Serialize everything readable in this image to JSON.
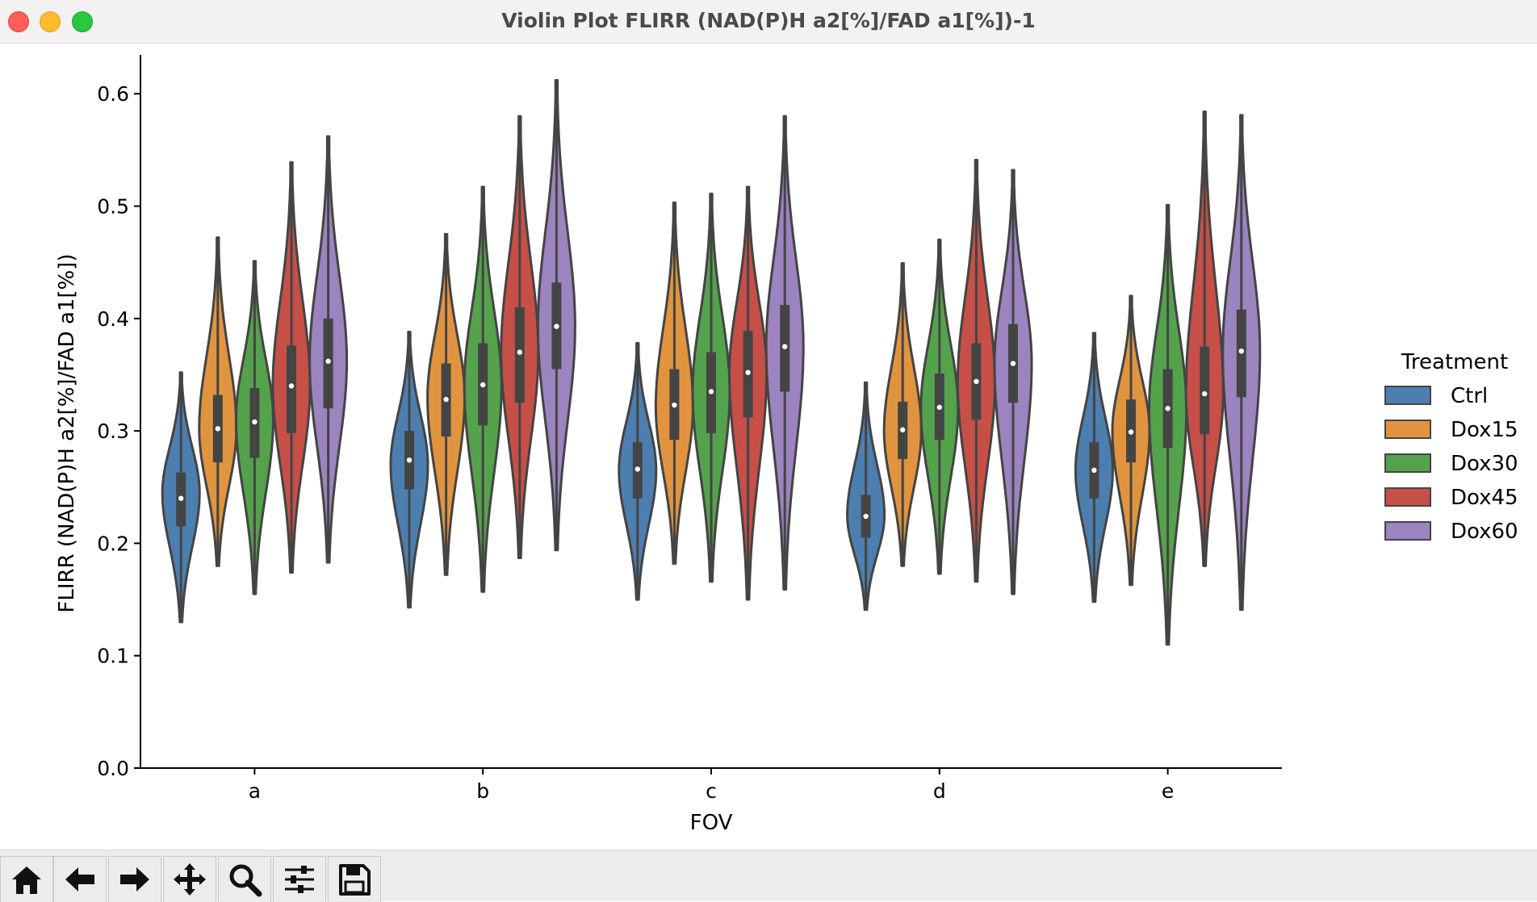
{
  "window": {
    "title": "Violin Plot FLIRR (NAD(P)H a2[%]/FAD a1[%])-1"
  },
  "toolbar": {
    "tools": [
      {
        "name": "home-icon"
      },
      {
        "name": "back-arrow-icon"
      },
      {
        "name": "forward-arrow-icon"
      },
      {
        "name": "pan-move-icon"
      },
      {
        "name": "zoom-magnifier-icon"
      },
      {
        "name": "configure-subplots-icon"
      },
      {
        "name": "save-floppy-icon"
      }
    ]
  },
  "chart_data": {
    "type": "violin",
    "xlabel": "FOV",
    "ylabel": "FLIRR (NAD(P)H a2[%]/FAD a1[%])",
    "categories": [
      "a",
      "b",
      "c",
      "d",
      "e"
    ],
    "ylim": [
      0.0,
      0.625
    ],
    "yticks": [
      0.0,
      0.1,
      0.2,
      0.3,
      0.4,
      0.5,
      0.6
    ],
    "ytick_labels": [
      "0.0",
      "0.1",
      "0.2",
      "0.3",
      "0.4",
      "0.5",
      "0.6"
    ],
    "grid": false,
    "legend": {
      "title": "Treatment",
      "placement": "right"
    },
    "series": [
      {
        "name": "Ctrl",
        "color": "#4c7fb0",
        "values": [
          {
            "min": 0.13,
            "q1": 0.215,
            "median": 0.24,
            "q3": 0.263,
            "max": 0.352,
            "peak": 0.245
          },
          {
            "min": 0.143,
            "q1": 0.248,
            "median": 0.274,
            "q3": 0.3,
            "max": 0.388,
            "peak": 0.27
          },
          {
            "min": 0.15,
            "q1": 0.24,
            "median": 0.266,
            "q3": 0.29,
            "max": 0.378,
            "peak": 0.265
          },
          {
            "min": 0.141,
            "q1": 0.205,
            "median": 0.224,
            "q3": 0.243,
            "max": 0.343,
            "peak": 0.225
          },
          {
            "min": 0.148,
            "q1": 0.24,
            "median": 0.265,
            "q3": 0.29,
            "max": 0.387,
            "peak": 0.265
          }
        ]
      },
      {
        "name": "Dox15",
        "color": "#e1943f",
        "values": [
          {
            "min": 0.18,
            "q1": 0.272,
            "median": 0.302,
            "q3": 0.332,
            "max": 0.472,
            "peak": 0.302
          },
          {
            "min": 0.172,
            "q1": 0.295,
            "median": 0.328,
            "q3": 0.36,
            "max": 0.475,
            "peak": 0.33
          },
          {
            "min": 0.182,
            "q1": 0.292,
            "median": 0.323,
            "q3": 0.355,
            "max": 0.503,
            "peak": 0.322
          },
          {
            "min": 0.18,
            "q1": 0.275,
            "median": 0.301,
            "q3": 0.326,
            "max": 0.449,
            "peak": 0.3
          },
          {
            "min": 0.163,
            "q1": 0.272,
            "median": 0.299,
            "q3": 0.328,
            "max": 0.42,
            "peak": 0.3
          }
        ]
      },
      {
        "name": "Dox30",
        "color": "#55a24c",
        "values": [
          {
            "min": 0.155,
            "q1": 0.276,
            "median": 0.308,
            "q3": 0.338,
            "max": 0.451,
            "peak": 0.31
          },
          {
            "min": 0.157,
            "q1": 0.305,
            "median": 0.341,
            "q3": 0.378,
            "max": 0.517,
            "peak": 0.34
          },
          {
            "min": 0.166,
            "q1": 0.298,
            "median": 0.335,
            "q3": 0.37,
            "max": 0.511,
            "peak": 0.335
          },
          {
            "min": 0.173,
            "q1": 0.292,
            "median": 0.321,
            "q3": 0.351,
            "max": 0.47,
            "peak": 0.32
          },
          {
            "min": 0.11,
            "q1": 0.285,
            "median": 0.32,
            "q3": 0.355,
            "max": 0.501,
            "peak": 0.32
          }
        ]
      },
      {
        "name": "Dox45",
        "color": "#c65048",
        "values": [
          {
            "min": 0.174,
            "q1": 0.298,
            "median": 0.34,
            "q3": 0.376,
            "max": 0.539,
            "peak": 0.34
          },
          {
            "min": 0.187,
            "q1": 0.325,
            "median": 0.37,
            "q3": 0.41,
            "max": 0.58,
            "peak": 0.37
          },
          {
            "min": 0.15,
            "q1": 0.312,
            "median": 0.352,
            "q3": 0.389,
            "max": 0.517,
            "peak": 0.352
          },
          {
            "min": 0.166,
            "q1": 0.31,
            "median": 0.344,
            "q3": 0.378,
            "max": 0.541,
            "peak": 0.343
          },
          {
            "min": 0.18,
            "q1": 0.297,
            "median": 0.333,
            "q3": 0.375,
            "max": 0.584,
            "peak": 0.333
          }
        ]
      },
      {
        "name": "Dox60",
        "color": "#9b84bf",
        "values": [
          {
            "min": 0.183,
            "q1": 0.32,
            "median": 0.362,
            "q3": 0.4,
            "max": 0.562,
            "peak": 0.362
          },
          {
            "min": 0.194,
            "q1": 0.355,
            "median": 0.393,
            "q3": 0.432,
            "max": 0.612,
            "peak": 0.393
          },
          {
            "min": 0.159,
            "q1": 0.335,
            "median": 0.375,
            "q3": 0.412,
            "max": 0.58,
            "peak": 0.375
          },
          {
            "min": 0.155,
            "q1": 0.325,
            "median": 0.36,
            "q3": 0.395,
            "max": 0.532,
            "peak": 0.36
          },
          {
            "min": 0.141,
            "q1": 0.33,
            "median": 0.371,
            "q3": 0.408,
            "max": 0.581,
            "peak": 0.371
          }
        ]
      }
    ]
  }
}
